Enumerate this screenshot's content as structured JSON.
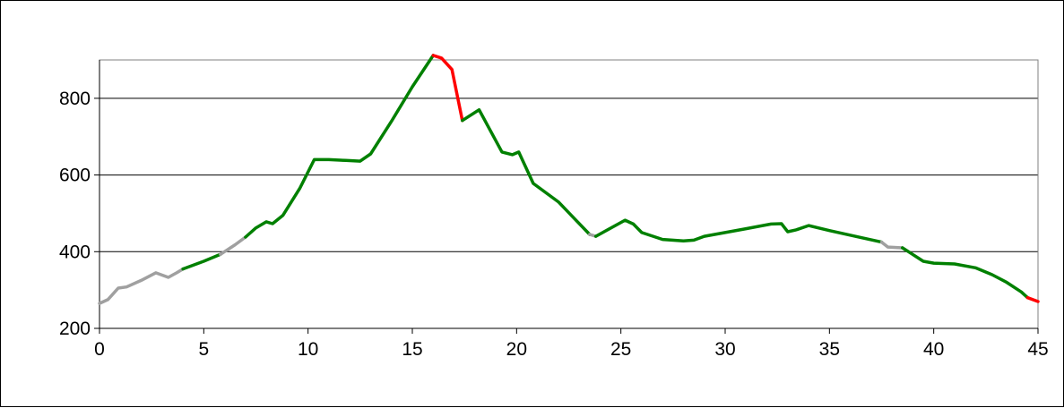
{
  "chart_data": {
    "type": "line",
    "title": "",
    "xlabel": "",
    "ylabel": "",
    "xlim": [
      0,
      45
    ],
    "ylim": [
      200,
      900
    ],
    "x_ticks": [
      0,
      5,
      10,
      15,
      20,
      25,
      30,
      35,
      40,
      45
    ],
    "y_ticks": [
      200,
      400,
      600,
      800
    ],
    "y_gridlines": [
      400,
      600,
      800
    ],
    "grid": true,
    "legend": "none",
    "colors": {
      "flat": "#a0a0a0",
      "climb": "#008000",
      "steep": "#ff0000",
      "grid": "#000000",
      "axis": "#808080"
    },
    "segments": [
      {
        "color_key": "flat",
        "points": [
          [
            0,
            265
          ],
          [
            0.4,
            275
          ],
          [
            0.9,
            305
          ],
          [
            1.3,
            308
          ],
          [
            2.0,
            325
          ],
          [
            2.7,
            345
          ],
          [
            3.3,
            333
          ],
          [
            3.7,
            345
          ],
          [
            4.0,
            355
          ]
        ]
      },
      {
        "color_key": "climb",
        "points": [
          [
            4.0,
            355
          ],
          [
            5.0,
            375
          ],
          [
            5.8,
            393
          ]
        ]
      },
      {
        "color_key": "flat",
        "points": [
          [
            5.8,
            393
          ],
          [
            6.5,
            418
          ],
          [
            7.0,
            438
          ]
        ]
      },
      {
        "color_key": "climb",
        "points": [
          [
            7.0,
            438
          ],
          [
            7.5,
            462
          ],
          [
            8.0,
            478
          ],
          [
            8.3,
            473
          ],
          [
            8.8,
            495
          ],
          [
            9.6,
            565
          ],
          [
            10.3,
            640
          ],
          [
            11.0,
            640
          ],
          [
            11.8,
            638
          ],
          [
            12.5,
            636
          ],
          [
            13.0,
            655
          ],
          [
            14.0,
            740
          ],
          [
            15.0,
            830
          ],
          [
            16.0,
            912
          ]
        ]
      },
      {
        "color_key": "steep",
        "points": [
          [
            16.0,
            912
          ],
          [
            16.4,
            905
          ],
          [
            16.9,
            875
          ],
          [
            17.4,
            742
          ]
        ]
      },
      {
        "color_key": "climb",
        "points": [
          [
            17.4,
            742
          ],
          [
            18.2,
            770
          ],
          [
            18.6,
            730
          ],
          [
            19.3,
            660
          ],
          [
            19.8,
            653
          ],
          [
            20.1,
            660
          ],
          [
            20.8,
            578
          ],
          [
            22.0,
            530
          ],
          [
            23.5,
            445
          ]
        ]
      },
      {
        "color_key": "flat",
        "points": [
          [
            23.5,
            445
          ],
          [
            23.8,
            440
          ]
        ]
      },
      {
        "color_key": "climb",
        "points": [
          [
            23.8,
            440
          ],
          [
            25.2,
            482
          ],
          [
            25.6,
            472
          ],
          [
            26.0,
            450
          ],
          [
            27.0,
            432
          ],
          [
            28.0,
            428
          ],
          [
            28.5,
            430
          ],
          [
            29.0,
            440
          ],
          [
            30.0,
            450
          ],
          [
            31.0,
            460
          ],
          [
            32.2,
            472
          ],
          [
            32.7,
            473
          ],
          [
            33.0,
            452
          ],
          [
            33.4,
            457
          ],
          [
            34.0,
            468
          ],
          [
            35.0,
            455
          ],
          [
            36.5,
            437
          ],
          [
            37.5,
            425
          ]
        ]
      },
      {
        "color_key": "flat",
        "points": [
          [
            37.5,
            425
          ],
          [
            37.8,
            412
          ],
          [
            38.5,
            410
          ]
        ]
      },
      {
        "color_key": "climb",
        "points": [
          [
            38.5,
            410
          ],
          [
            39.5,
            375
          ],
          [
            40.0,
            370
          ],
          [
            41.0,
            368
          ],
          [
            42.0,
            358
          ],
          [
            42.8,
            340
          ],
          [
            43.5,
            320
          ],
          [
            44.2,
            295
          ],
          [
            44.5,
            280
          ]
        ]
      },
      {
        "color_key": "steep",
        "points": [
          [
            44.5,
            280
          ],
          [
            45.0,
            270
          ]
        ]
      }
    ]
  }
}
